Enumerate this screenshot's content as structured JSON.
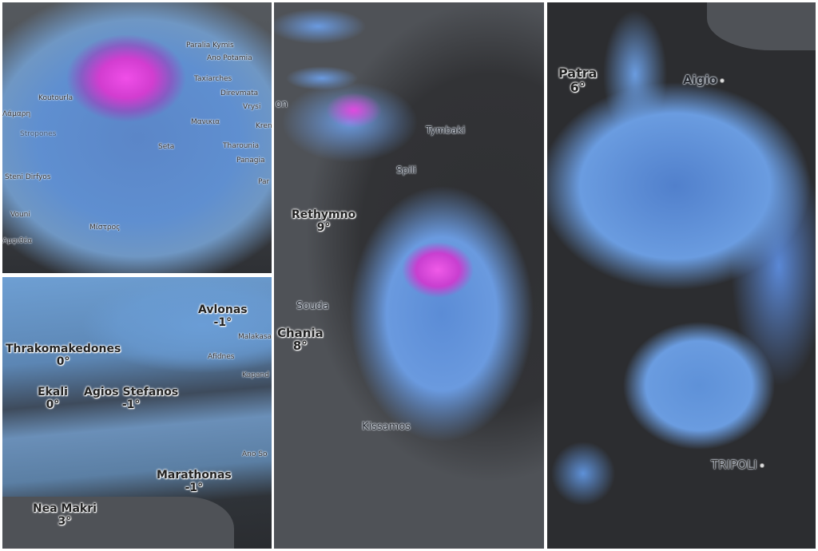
{
  "panel_evia": {
    "places": [
      "Paralia Kymis",
      "Ano Potamia",
      "Taxiarches",
      "Direvmata",
      "Vrysi",
      "Kren",
      "Λάμαρη",
      "Koutourla",
      "Stropones",
      "Μανικια",
      "Seta",
      "Tharounia",
      "Panagia",
      "Par",
      "Steni Dirfyos",
      "Vouni",
      "Μίστρος",
      "Αμφιθέα"
    ]
  },
  "panel_attica": {
    "cities": [
      {
        "name": "Avlonas",
        "temp": "-1°"
      },
      {
        "name": "Thrakomakedones",
        "temp": "0°"
      },
      {
        "name": "Ekali",
        "temp": "0°"
      },
      {
        "name": "Agios Stefanos",
        "temp": "-1°"
      },
      {
        "name": "Marathonas",
        "temp": "-1°"
      },
      {
        "name": "Nea Makri",
        "temp": "3°"
      }
    ],
    "places": [
      "Malakasa",
      "Afidnes",
      "Kapand",
      "Ano So"
    ]
  },
  "panel_crete": {
    "cities": [
      {
        "name": "Rethymno",
        "temp": "9°"
      },
      {
        "name": "Chania",
        "temp": "8°"
      }
    ],
    "places": [
      "on",
      "Tymbaki",
      "Spili",
      "Souda",
      "Kissamos"
    ]
  },
  "panel_peloponnese": {
    "cities": [
      {
        "name": "Patra",
        "temp": "6°"
      }
    ],
    "places": [
      "Aigio",
      "TRIPOLI"
    ]
  },
  "colors": {
    "snow_heavy": "#f04ee8",
    "snow_light": "#6a9ce0",
    "land": "#2c2d30",
    "sea": "#4f5257"
  }
}
